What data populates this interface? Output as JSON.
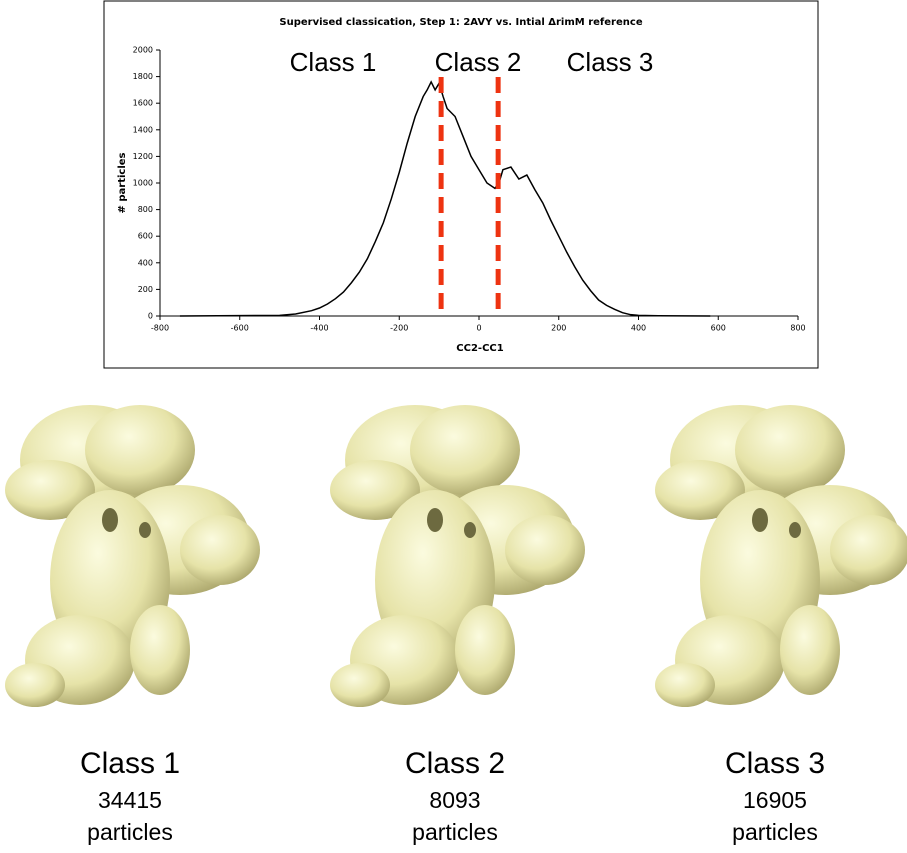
{
  "chart_data": {
    "type": "line",
    "title": "Supervised classication, Step 1: 2AVY vs. Intial ΔrimM  reference",
    "xlabel": "CC2-CC1",
    "ylabel": "# particles",
    "annotations": [
      "Class 1",
      "Class 2",
      "Class 3"
    ],
    "vlines": [
      -95,
      48
    ],
    "vline_color": "#ee3311",
    "x": [
      -750,
      -500,
      -460,
      -420,
      -400,
      -380,
      -360,
      -340,
      -320,
      -300,
      -280,
      -260,
      -240,
      -220,
      -200,
      -180,
      -160,
      -140,
      -130,
      -120,
      -110,
      -100,
      -90,
      -80,
      -60,
      -40,
      -20,
      0,
      20,
      40,
      50,
      60,
      80,
      100,
      120,
      140,
      160,
      180,
      200,
      220,
      240,
      260,
      280,
      300,
      320,
      340,
      360,
      380,
      400,
      450,
      580
    ],
    "series": [
      {
        "color": "#000000",
        "values": [
          0,
          5,
          15,
          40,
          60,
          90,
          130,
          180,
          250,
          330,
          430,
          560,
          700,
          880,
          1080,
          1300,
          1500,
          1650,
          1700,
          1760,
          1700,
          1750,
          1650,
          1560,
          1500,
          1350,
          1200,
          1100,
          1000,
          960,
          1000,
          1100,
          1120,
          1030,
          1060,
          950,
          850,
          720,
          600,
          480,
          370,
          270,
          190,
          120,
          80,
          50,
          25,
          10,
          5,
          2,
          0
        ]
      }
    ],
    "xlim": [
      -800,
      800
    ],
    "xticks": [
      -800,
      -600,
      -400,
      -200,
      0,
      200,
      400,
      600,
      800
    ],
    "ylim": [
      0,
      2000
    ],
    "yticks": [
      0,
      200,
      400,
      600,
      800,
      1000,
      1200,
      1400,
      1600,
      1800,
      2000
    ]
  },
  "classes": [
    {
      "name": "Class 1",
      "count": 34415,
      "unit": "particles"
    },
    {
      "name": "Class 2",
      "count": 8093,
      "unit": "particles"
    },
    {
      "name": "Class 3",
      "count": 16905,
      "unit": "particles"
    }
  ]
}
